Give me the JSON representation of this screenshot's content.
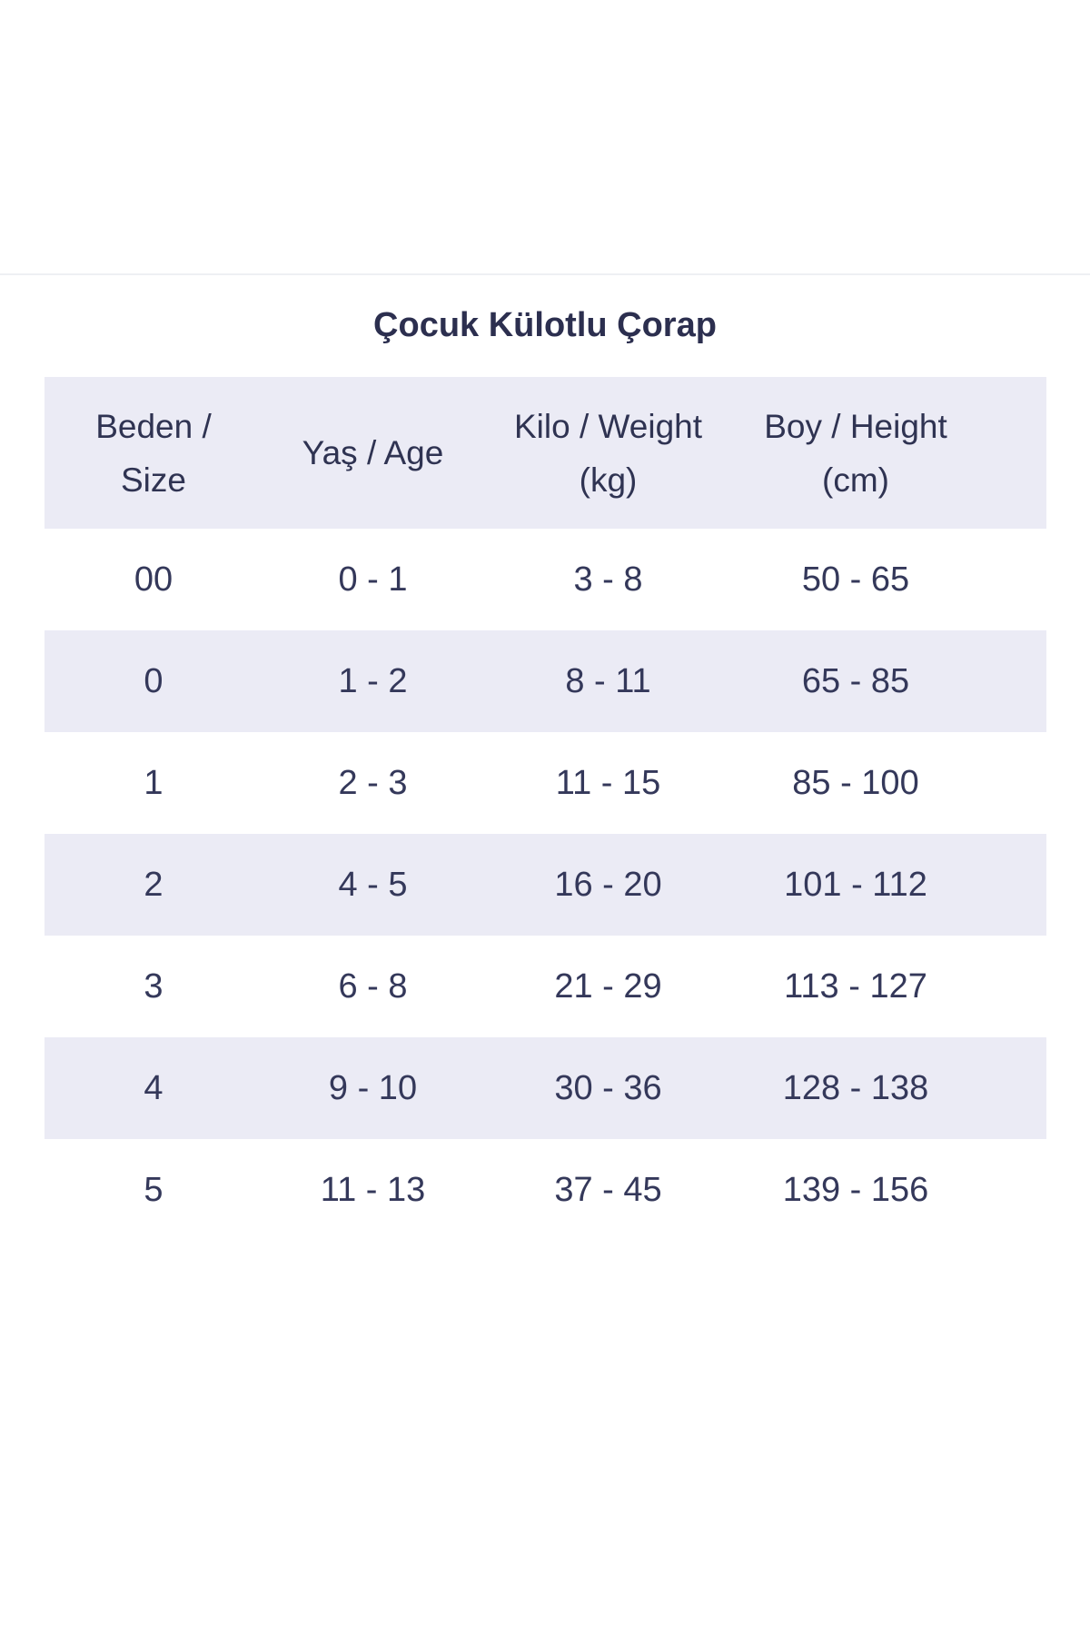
{
  "title": "Çocuk Külotlu Çorap",
  "table": {
    "headers": [
      "Beden /\nSize",
      "Yaş / Age",
      "Kilo / Weight\n(kg)",
      "Boy / Height\n(cm)"
    ],
    "rows": [
      [
        "00",
        "0 - 1",
        "3 - 8",
        "50 - 65"
      ],
      [
        "0",
        "1 - 2",
        "8 - 11",
        "65 - 85"
      ],
      [
        "1",
        "2 - 3",
        "11 - 15",
        "85 - 100"
      ],
      [
        "2",
        "4 - 5",
        "16 - 20",
        "101 - 112"
      ],
      [
        "3",
        "6 - 8",
        "21 - 29",
        "113 - 127"
      ],
      [
        "4",
        "9 - 10",
        "30 - 36",
        "128 - 138"
      ],
      [
        "5",
        "11 - 13",
        "37 - 45",
        "139 - 156"
      ]
    ]
  },
  "colors": {
    "text": "#2f3352",
    "shade": "#ebebf5",
    "background": "#ffffff"
  }
}
